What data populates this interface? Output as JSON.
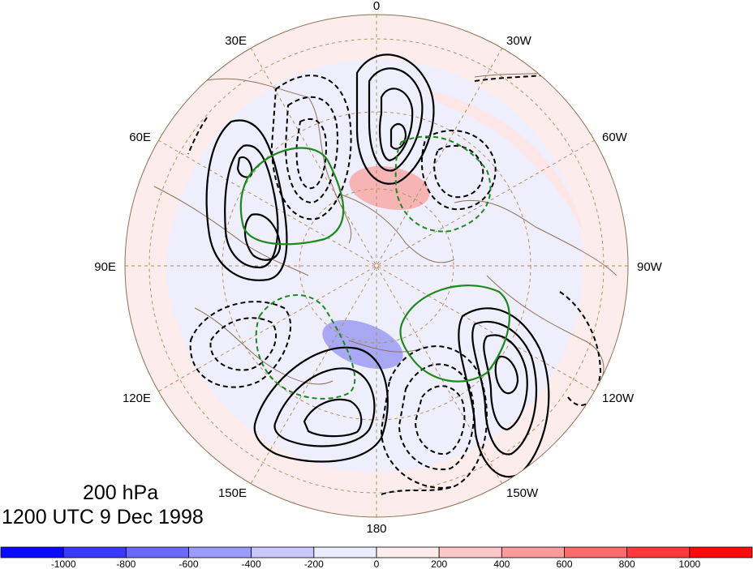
{
  "map": {
    "projection": "north polar stereographic",
    "longitude_labels": {
      "top": "0",
      "top_right": "30W",
      "right_upper": "60W",
      "right": "90W",
      "right_lower": "120W",
      "bottom_right": "150W",
      "bottom": "180",
      "bottom_left": "150E",
      "left_lower": "120E",
      "left": "90E",
      "left_upper": "60E",
      "top_left": "30E"
    },
    "colors": {
      "positive_contour": "#000000",
      "negative_contour": "#000000",
      "green_contour": "#1a8a1a",
      "coastline": "#8b7355",
      "grid": "#b08850"
    }
  },
  "title": {
    "level": "200 hPa",
    "time": "1200 UTC 9 Dec 1998"
  },
  "colorbar": {
    "labels": [
      "-1000",
      "-800",
      "-600",
      "-400",
      "-200",
      "0",
      "200",
      "400",
      "600",
      "800",
      "1000"
    ],
    "colors": [
      "#0a0aff",
      "#3a3aff",
      "#6a6aff",
      "#9a9aff",
      "#c8c8ff",
      "#ececff",
      "#ffecec",
      "#ffc8c8",
      "#ff9a9a",
      "#ff6a6a",
      "#ff3a3a",
      "#ff0a0a"
    ]
  }
}
